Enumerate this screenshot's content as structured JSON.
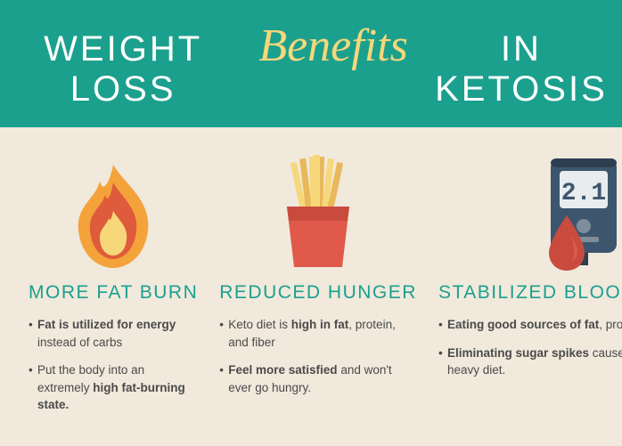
{
  "header": {
    "part1": "WEIGHT LOSS",
    "script": "Benefits",
    "part2": "IN KETOSIS",
    "bg_color": "#1ba08e",
    "plain_color": "#ffffff",
    "script_color": "#f6d77a",
    "plain_fontsize": 40,
    "script_fontsize": 52
  },
  "page": {
    "bg_color": "#f0e9dc",
    "col_title_color": "#1ba08e",
    "body_text_color": "#4a4a4a"
  },
  "columns": [
    {
      "icon": "flame",
      "title": "MORE FAT BURN",
      "bullets": [
        "<b>Fat is utilized for energy</b> instead of carbs",
        "Put the body into an extremely <b>high fat-burning state.</b>"
      ]
    },
    {
      "icon": "fries",
      "title": "REDUCED HUNGER",
      "bullets": [
        "Keto diet is <b>high in fat</b>, protein, and fiber",
        "<b>Feel more satisfied</b> and won't ever go hungry."
      ]
    },
    {
      "icon": "glucometer",
      "title": "STABILIZED BLOOD SUGAR",
      "bullets": [
        "<b>Eating good sources of fat</b>, protein, and veggies",
        "<b>Eliminating sugar spikes</b> caused by acarb-heavy diet."
      ]
    }
  ],
  "icons": {
    "flame": {
      "outer_color": "#f4a23a",
      "inner_color": "#de5b3b",
      "core_color": "#f6d77a"
    },
    "fries": {
      "box_color": "#e0594a",
      "box_shadow": "#c94b3e",
      "fry_light": "#f6d77a",
      "fry_dark": "#e8b85a"
    },
    "glucometer": {
      "body_color": "#3d566e",
      "body_shadow": "#2c3e50",
      "screen_bg": "#e8ecef",
      "screen_text": "2.1",
      "screen_text_color": "#3d566e",
      "button_color": "#7f8c9a",
      "drop_color": "#c94b3e",
      "drop_highlight": "#e0594a"
    }
  }
}
